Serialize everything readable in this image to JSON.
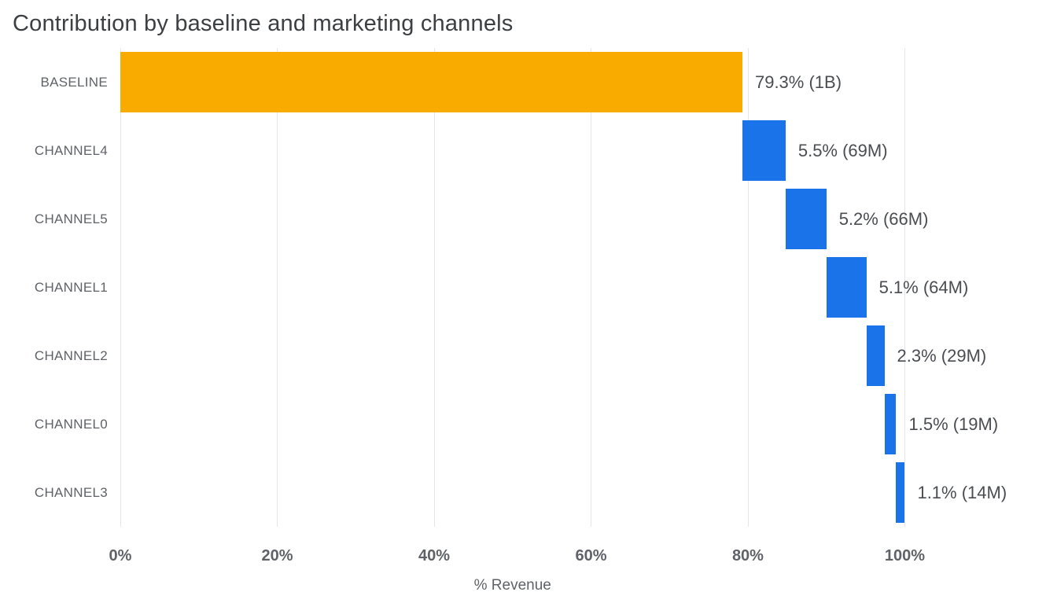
{
  "title": "Contribution by baseline and marketing channels",
  "chart_data": {
    "type": "bar",
    "subtype": "horizontal-waterfall",
    "categories": [
      "BASELINE",
      "CHANNEL4",
      "CHANNEL5",
      "CHANNEL1",
      "CHANNEL2",
      "CHANNEL0",
      "CHANNEL3"
    ],
    "values": [
      79.3,
      5.5,
      5.2,
      5.1,
      2.3,
      1.5,
      1.1
    ],
    "value_labels": [
      "79.3% (1B)",
      "5.5% (69M)",
      "5.2% (66M)",
      "5.1% (64M)",
      "2.3% (29M)",
      "1.5% (19M)",
      "1.1% (14M)"
    ],
    "bar_colors": [
      "#F9AB00",
      "#1A73E8",
      "#1A73E8",
      "#1A73E8",
      "#1A73E8",
      "#1A73E8",
      "#1A73E8"
    ],
    "title": "Contribution by baseline and marketing channels",
    "xlabel": "% Revenue",
    "ylabel": "",
    "x_ticks": [
      "0%",
      "20%",
      "40%",
      "60%",
      "80%",
      "100%"
    ],
    "x_tick_values": [
      0,
      20,
      40,
      60,
      80,
      100
    ],
    "xlim": [
      0,
      118
    ],
    "grid": true,
    "legend": false,
    "cumulative": true
  },
  "colors": {
    "baseline_bar": "#F9AB00",
    "channel_bar": "#1A73E8",
    "gridline": "#e4e6e9",
    "title_text": "#3c4043",
    "label_text": "#5f6368"
  }
}
